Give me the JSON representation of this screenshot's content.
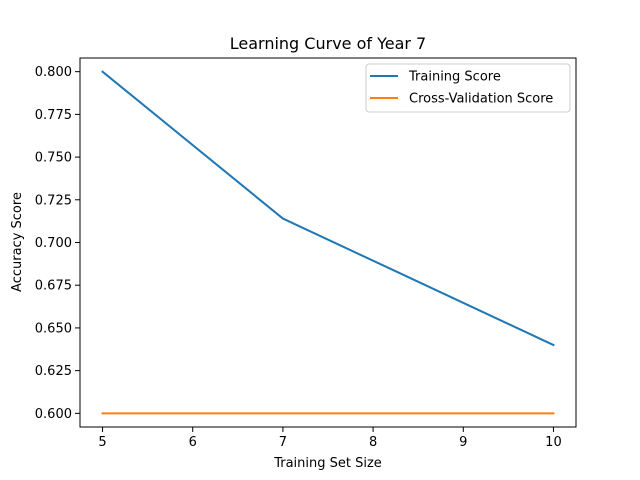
{
  "chart_data": {
    "type": "line",
    "title": "Learning Curve of Year 7",
    "xlabel": "Training Set Size",
    "ylabel": "Accuracy Score",
    "x": [
      5,
      7,
      10
    ],
    "series": [
      {
        "name": "Training Score",
        "values": [
          0.8,
          0.714,
          0.64
        ],
        "color": "#1f77b4"
      },
      {
        "name": "Cross-Validation Score",
        "values": [
          0.6,
          0.6,
          0.6
        ],
        "color": "#ff7f0e"
      }
    ],
    "xlim": [
      4.75,
      10.25
    ],
    "ylim": [
      0.592,
      0.808
    ],
    "xticks": [
      5,
      6,
      7,
      8,
      9,
      10
    ],
    "xtick_labels": [
      "5",
      "6",
      "7",
      "8",
      "9",
      "10"
    ],
    "yticks": [
      0.6,
      0.625,
      0.65,
      0.675,
      0.7,
      0.725,
      0.75,
      0.775,
      0.8
    ],
    "ytick_labels": [
      "0.600",
      "0.625",
      "0.650",
      "0.675",
      "0.700",
      "0.725",
      "0.750",
      "0.775",
      "0.800"
    ],
    "grid": false,
    "legend_position": "top-right"
  }
}
